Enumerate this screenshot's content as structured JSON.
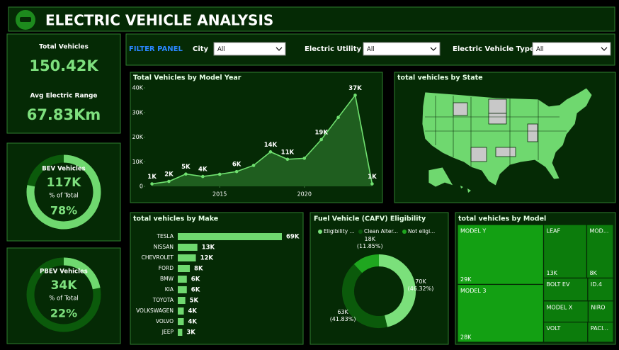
{
  "header": {
    "title": "ELECTRIC VEHICLE ANALYSIS"
  },
  "kpis": [
    {
      "label": "Total Vehicles",
      "value": "150.42K"
    },
    {
      "label": "Avg Electric Range",
      "value": "67.83Km"
    }
  ],
  "filters": {
    "title": "FILTER PANEL",
    "fields": [
      {
        "label": "City",
        "value": "All"
      },
      {
        "label": "Electric Utility",
        "value": "All"
      },
      {
        "label": "Electric Vehicle Type",
        "value": "All"
      }
    ]
  },
  "chart_data": [
    {
      "type": "gauge",
      "title": "BEV Vehicles",
      "value": "117K",
      "subtitle": "% of Total",
      "percent": 78,
      "percent_label": "78%",
      "color": "#6fd86f",
      "track_color": "#0b5a0b"
    },
    {
      "type": "gauge",
      "title": "PBEV Vehicles",
      "value": "34K",
      "subtitle": "% of Total",
      "percent": 22,
      "percent_label": "22%",
      "color": "#6fd86f",
      "track_color": "#0b5a0b"
    },
    {
      "type": "line",
      "title": "Total Vehicles by Model Year",
      "x": [
        2011,
        2012,
        2013,
        2014,
        2015,
        2016,
        2017,
        2018,
        2019,
        2020,
        2021,
        2022,
        2023,
        2024
      ],
      "values": [
        1000,
        2000,
        5000,
        4000,
        4900,
        6000,
        8500,
        14000,
        11000,
        11400,
        19000,
        28000,
        37000,
        1000
      ],
      "value_labels": [
        "1K",
        "2K",
        "5K",
        "4K",
        null,
        "6K",
        null,
        "14K",
        "11K",
        null,
        "19K",
        null,
        "37K",
        "1K"
      ],
      "xlim": [
        2010.6,
        2024.4
      ],
      "xticks": [
        2015,
        2020
      ],
      "ylim": [
        0,
        40000
      ],
      "yticks": [
        0,
        {
          "value": 10000,
          "label": "10K"
        },
        {
          "value": 20000,
          "label": "20K"
        },
        {
          "value": 30000,
          "label": "30K"
        },
        {
          "value": 40000,
          "label": "40K"
        }
      ],
      "color": "#6fe06f",
      "area_color": "#1f5e1f"
    },
    {
      "type": "map",
      "title": "total vehicles by State",
      "color": "#6fd86f"
    },
    {
      "type": "bar",
      "title": "total vehicles by Make",
      "categories": [
        "TESLA",
        "NISSAN",
        "CHEVROLET",
        "FORD",
        "BMW",
        "KIA",
        "TOYOTA",
        "VOLKSWAGEN",
        "VOLVO",
        "JEEP"
      ],
      "values": [
        69000,
        13000,
        12000,
        8000,
        6000,
        6000,
        5000,
        4000,
        4000,
        3000
      ],
      "value_labels": [
        "69K",
        "13K",
        "12K",
        "8K",
        "6K",
        "6K",
        "5K",
        "4K",
        "4K",
        "3K"
      ],
      "color": "#6fd86f"
    },
    {
      "type": "donut",
      "title": "Fuel Vehicle (CAFV) Eligibility",
      "categories": [
        "Eligibility ...",
        "Clean Alter...",
        "Not eligi..."
      ],
      "values": [
        46.32,
        41.83,
        11.85
      ],
      "value_labels": [
        "(46.32%)",
        "(41.83%)",
        "(11.85%)"
      ],
      "counts": [
        70000,
        63000,
        18000
      ],
      "count_labels": [
        "70K",
        "63K",
        "18K"
      ],
      "colors": [
        "#7be07b",
        "#0b5a0b",
        "#1fa61f"
      ]
    },
    {
      "type": "treemap",
      "title": "total vehicles by Model",
      "categories": [
        "MODEL Y",
        "MODEL 3",
        "LEAF",
        "MOD...",
        "BOLT EV",
        "ID.4",
        "MODEL X",
        "NIRO",
        "VOLT",
        "PACI..."
      ],
      "values": [
        29000,
        28000,
        13000,
        8000,
        5700,
        3300,
        5300,
        3000,
        5000,
        2900
      ],
      "value_labels": [
        "29K",
        "28K",
        "13K",
        "8K",
        null,
        null,
        null,
        null,
        null,
        null
      ],
      "colors": [
        "#13a013",
        "#13a013",
        "#0c7c0c",
        "#0c7c0c",
        "#0c7c0c",
        "#0c7c0c",
        "#0c7c0c",
        "#0c7c0c",
        "#0c7c0c",
        "#0c7c0c"
      ]
    }
  ]
}
